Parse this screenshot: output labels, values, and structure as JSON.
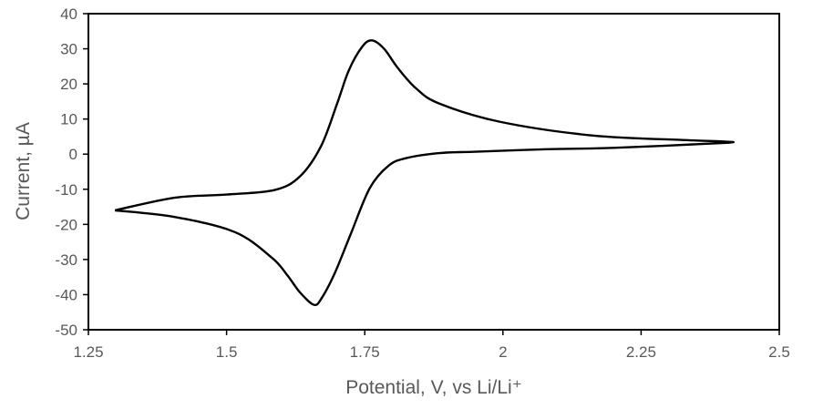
{
  "chart_data": {
    "type": "line",
    "title": "",
    "xlabel": "Potential, V, vs Li/Li⁺",
    "ylabel": "Current, µA",
    "xlim": [
      1.25,
      2.5
    ],
    "ylim": [
      -50,
      40
    ],
    "xticks": [
      "1.25",
      "1.5",
      "1.75",
      "2",
      "2.25",
      "2.5"
    ],
    "xtick_values": [
      1.25,
      1.5,
      1.75,
      2,
      2.25,
      2.5
    ],
    "yticks": [
      "40",
      "30",
      "20",
      "10",
      "0",
      "-10",
      "-20",
      "-30",
      "-40",
      "-50"
    ],
    "ytick_values": [
      40,
      30,
      20,
      10,
      0,
      -10,
      -20,
      -30,
      -40,
      -50
    ],
    "grid": false,
    "legend": "none",
    "line_color": "#000000",
    "series": [
      {
        "x": [
          1.298,
          1.406,
          1.5,
          1.587,
          1.633,
          1.671,
          1.7,
          1.721,
          1.745,
          1.763,
          1.785,
          1.81,
          1.843,
          1.885,
          1.995,
          2.163,
          2.332,
          2.399,
          2.4,
          2.2,
          2.079,
          1.95,
          1.885,
          1.826,
          1.793,
          1.759,
          1.725,
          1.696,
          1.672,
          1.658,
          1.633,
          1.61,
          1.582,
          1.515,
          1.406,
          1.298
        ],
        "y": [
          -16.0,
          -12.4,
          -11.5,
          -10.2,
          -6.3,
          2.3,
          14.4,
          23.8,
          30.5,
          32.4,
          30.0,
          24.5,
          18.7,
          14.4,
          9.2,
          5.3,
          4.0,
          3.6,
          3.2,
          1.8,
          1.4,
          0.7,
          0.3,
          -1.1,
          -3.3,
          -9.7,
          -22.6,
          -33.8,
          -41.0,
          -42.9,
          -39.4,
          -34.5,
          -29.5,
          -22.2,
          -17.9,
          -16.0
        ]
      }
    ]
  }
}
